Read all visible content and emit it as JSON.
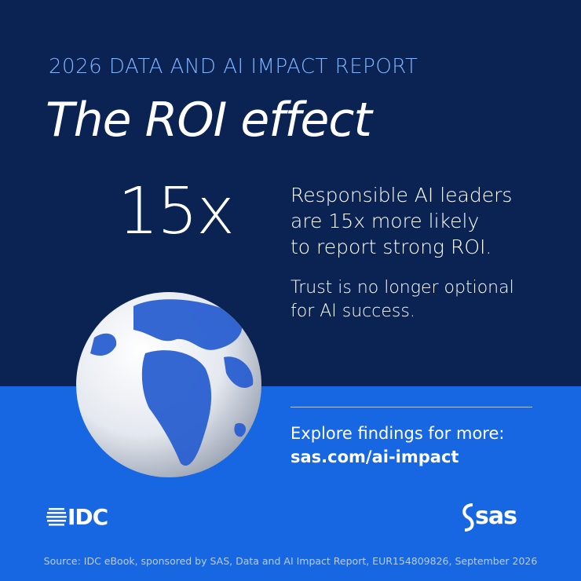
{
  "header": {
    "report": "2026 DATA AND AI IMPACT REPORT",
    "title": "The ROI effect"
  },
  "stat": {
    "value": "15x",
    "lines": [
      "Responsible AI leaders",
      "are 15x more likely",
      "to report strong ROI."
    ]
  },
  "note": {
    "lines": [
      "Trust is no longer optional",
      "for AI success."
    ]
  },
  "cta": {
    "text": "Explore findings for more:",
    "link": "sas.com/ai-impact"
  },
  "logos": {
    "left": "IDC",
    "right": "sas"
  },
  "source": "Source: IDC eBook, sponsored by SAS, Data and AI Impact Report, EUR154809826, September 2026"
}
